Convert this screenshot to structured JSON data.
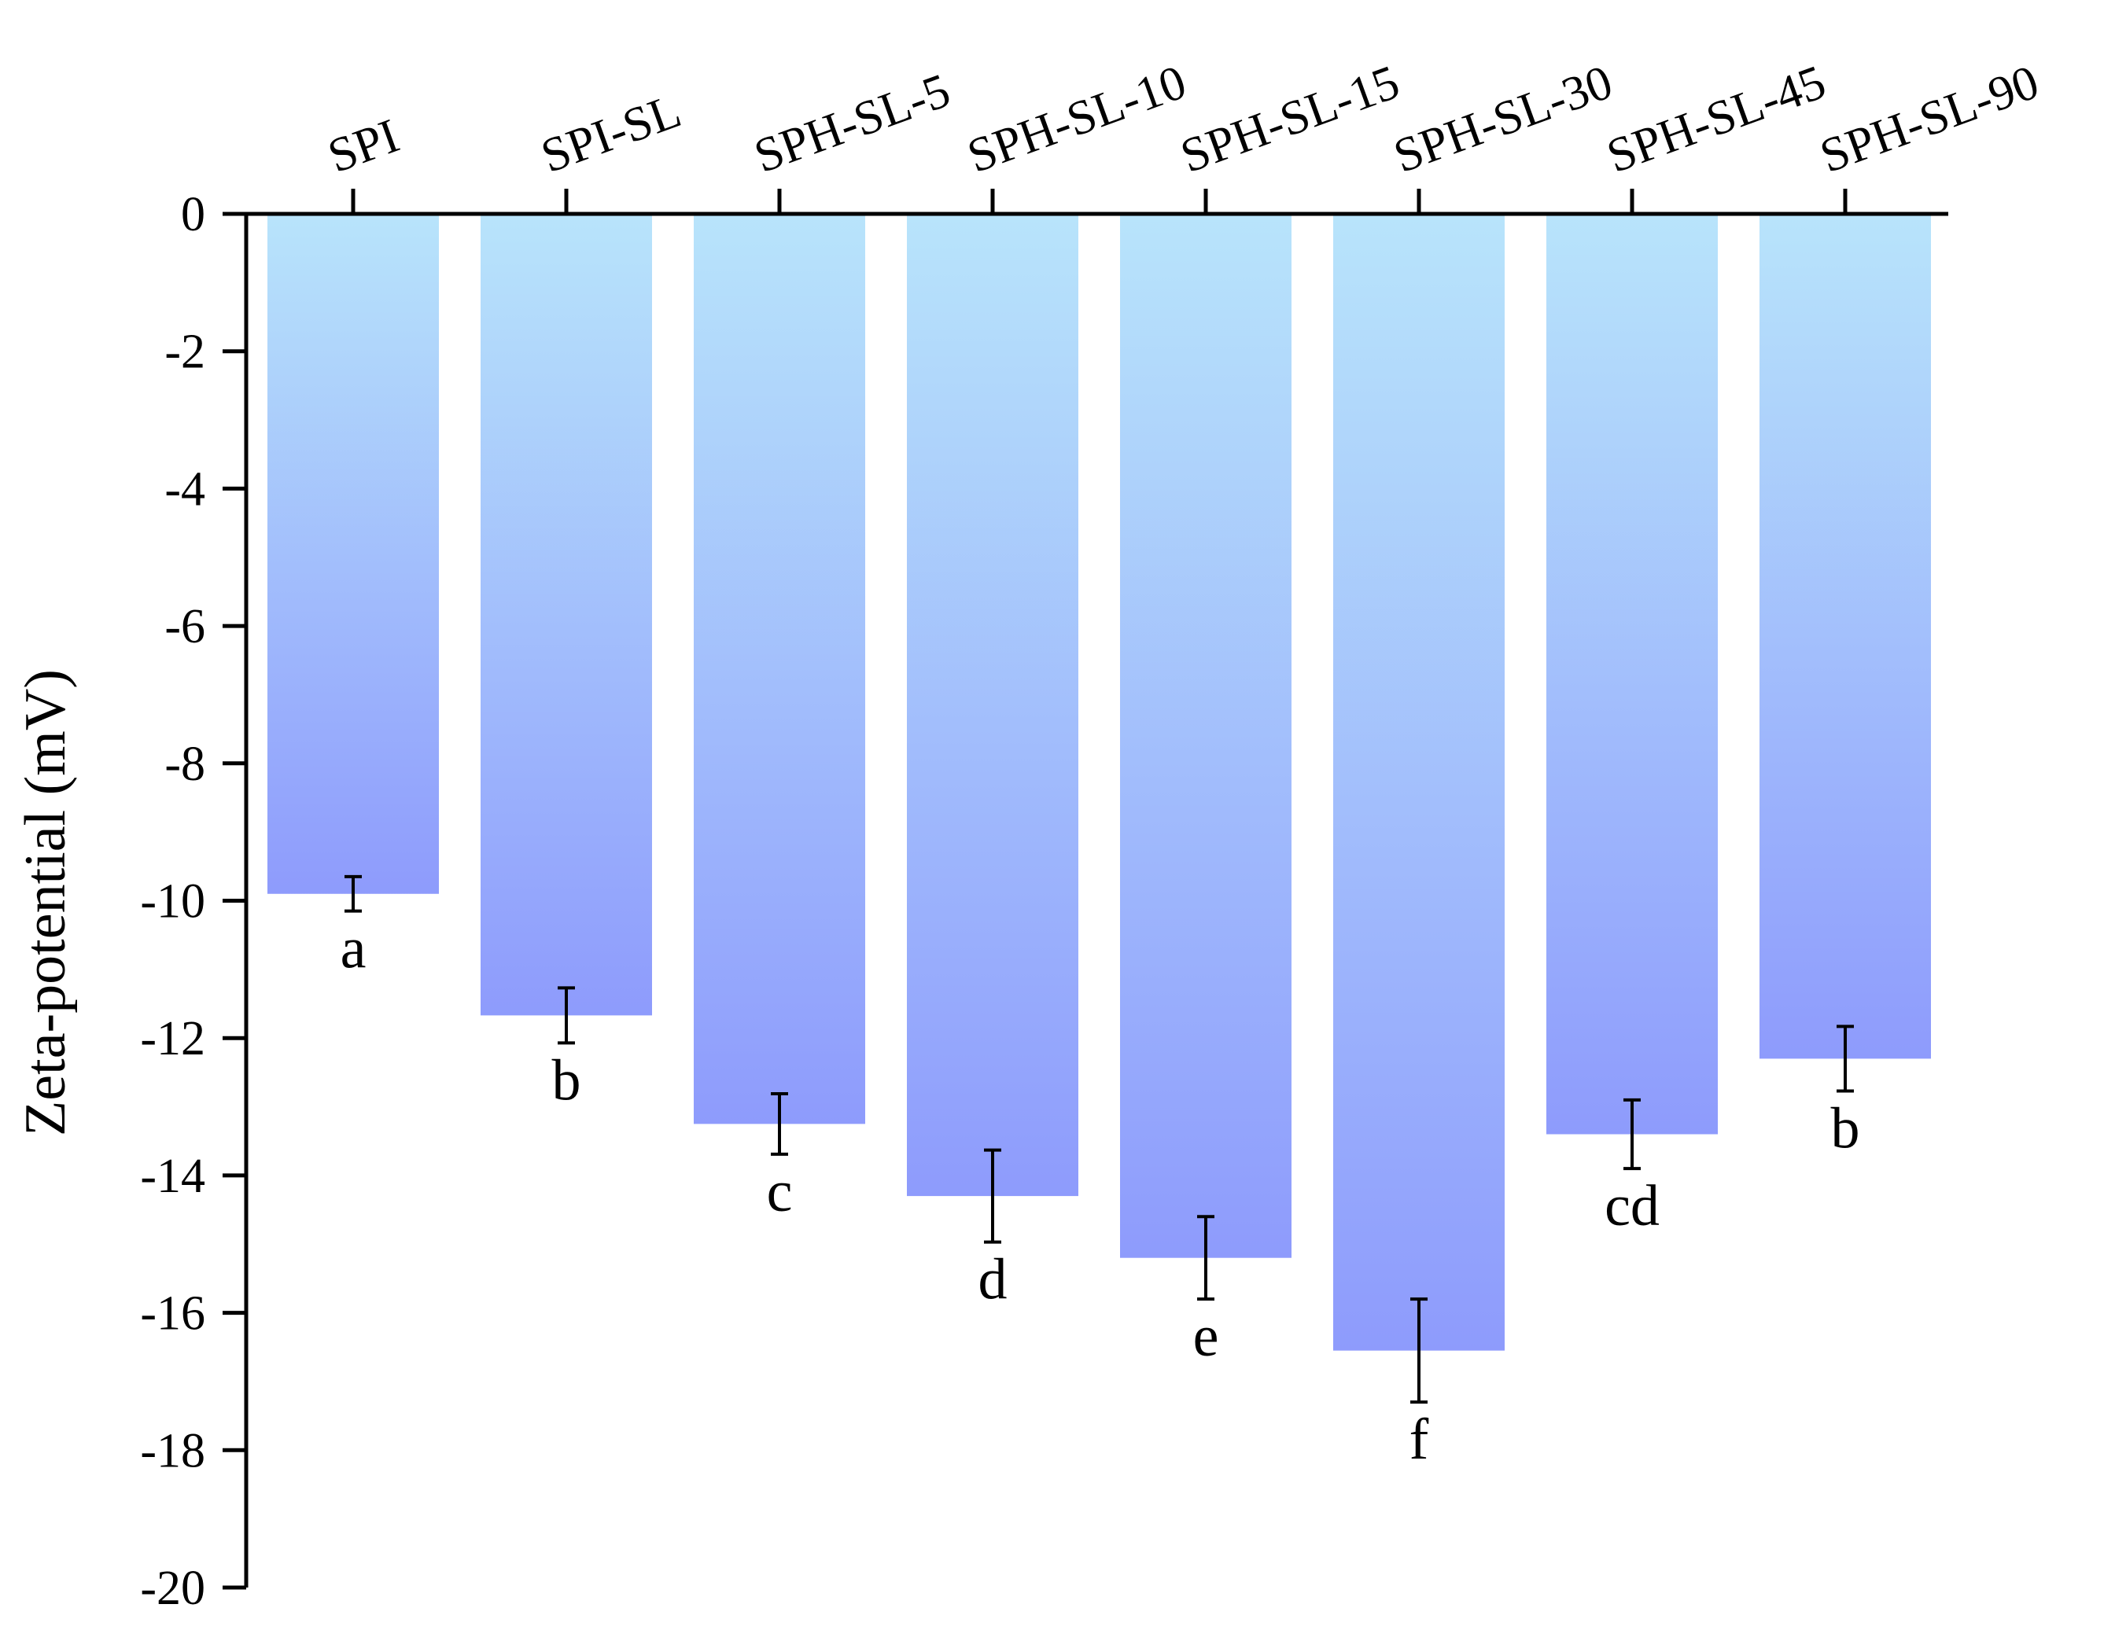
{
  "chart_data": {
    "type": "bar",
    "title": "",
    "xlabel": "",
    "ylabel": "Zeta-potential (mV)",
    "ylim": [
      -20,
      0
    ],
    "yticks": [
      0,
      -2,
      -4,
      -6,
      -8,
      -10,
      -12,
      -14,
      -16,
      -18,
      -20
    ],
    "ytick_labels": [
      "0",
      "-2",
      "-4",
      "-6",
      "-8",
      "-10",
      "-12",
      "-14",
      "-16",
      "-18",
      "-20"
    ],
    "x_axis_position": "top",
    "categories": [
      "SPI",
      "SPI-SL",
      "SPH-SL-5",
      "SPH-SL-10",
      "SPH-SL-15",
      "SPH-SL-30",
      "SPH-SL-45",
      "SPH-SL-90"
    ],
    "values": [
      -9.9,
      -11.67,
      -13.25,
      -14.3,
      -15.2,
      -16.55,
      -13.4,
      -12.3
    ],
    "errors": [
      0.25,
      0.4,
      0.44,
      0.67,
      0.6,
      0.75,
      0.5,
      0.47
    ],
    "significance_letters": [
      "a",
      "b",
      "c",
      "d",
      "e",
      "f",
      "cd",
      "b"
    ],
    "bar_gradient": {
      "top_color": "#B8E4FB",
      "bottom_color": "#8E9BFC"
    },
    "grid": false,
    "legend": "none"
  }
}
